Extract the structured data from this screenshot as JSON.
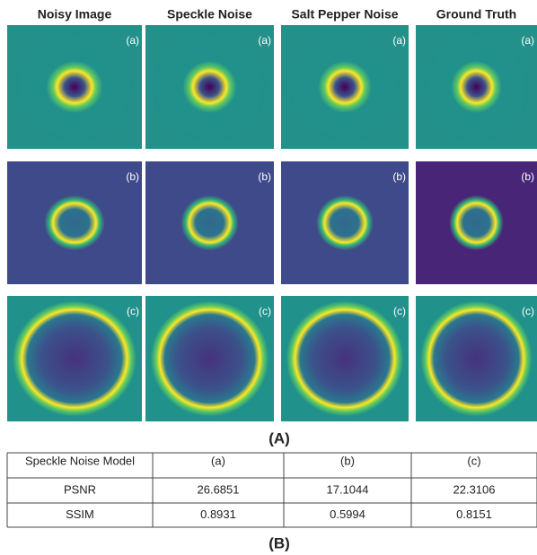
{
  "figure": {
    "column_headers": [
      "Noisy Image",
      "Speckle Noise",
      "Salt Pepper Noise",
      "Ground Truth"
    ],
    "panel_labels": [
      "(a)",
      "(b)",
      "(c)"
    ],
    "caption_a": "(A)",
    "table": {
      "header": [
        "Speckle Noise Model",
        "(a)",
        "(b)",
        "(c)"
      ],
      "rows": [
        [
          "PSNR",
          "26.6851",
          "17.1044",
          "22.3106"
        ],
        [
          "SSIM",
          "0.8931",
          "0.5994",
          "0.8151"
        ]
      ]
    },
    "caption_b": "(B)"
  }
}
